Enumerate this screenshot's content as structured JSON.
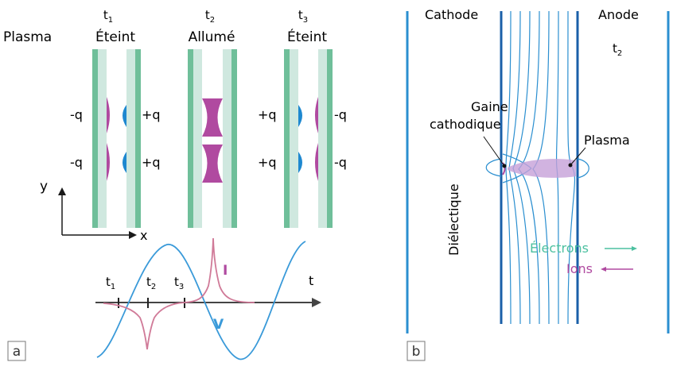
{
  "panel_a": {
    "plasma_label": "Plasma",
    "columns": [
      {
        "time_base": "t",
        "time_sub": "1",
        "state": "Éteint"
      },
      {
        "time_base": "t",
        "time_sub": "2",
        "state": "Allumé"
      },
      {
        "time_base": "t",
        "time_sub": "3",
        "state": "Éteint"
      }
    ],
    "charges": {
      "col1_left": "-q",
      "col1_right": "+q",
      "col3_left": "+q",
      "col3_right": "-q"
    },
    "axis_y": "y",
    "axis_x": "x",
    "waveform": {
      "t_axis": "t",
      "ticks": [
        {
          "base": "t",
          "sub": "1"
        },
        {
          "base": "t",
          "sub": "2"
        },
        {
          "base": "t",
          "sub": "3"
        }
      ],
      "current_label": "I",
      "voltage_label": "V"
    },
    "badge": "a"
  },
  "panel_b": {
    "cathode": "Cathode",
    "anode": "Anode",
    "time_base": "t",
    "time_sub": "2",
    "gaine_line1": "Gaine",
    "gaine_line2": "cathodique",
    "plasma": "Plasma",
    "dielectric": "Diélectique",
    "electrons": "Électrons",
    "ions": "Ions",
    "badge": "b"
  },
  "colors": {
    "electrode": "#6fbf9a",
    "dielectric_fill": "#cfe8df",
    "charge_pos": "#1e88d0",
    "charge_neg": "#b04aa0",
    "voltage": "#3a9ad9",
    "current": "#d07a98",
    "field_lines": "#2b8fd0",
    "electron": "#4cc0a0",
    "ion": "#b04aa0"
  }
}
